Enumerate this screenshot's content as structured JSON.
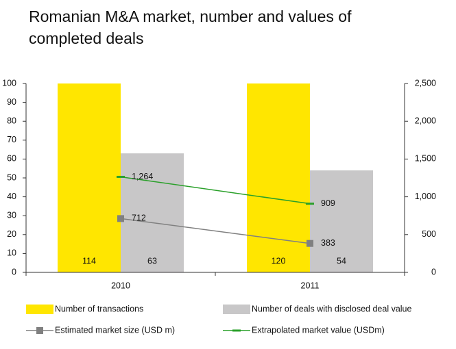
{
  "chart_data": {
    "type": "bar",
    "title": "Romanian M&A market, number and values of completed deals",
    "categories": [
      "2010",
      "2011"
    ],
    "series": [
      {
        "name": "Number of transactions",
        "type": "bar",
        "color": "#ffe600",
        "values": [
          114,
          120
        ]
      },
      {
        "name": "Number of deals with disclosed deal value",
        "type": "bar",
        "color": "#c8c7c8",
        "values": [
          63,
          54
        ]
      },
      {
        "name": "Estimated market size (USD m)",
        "type": "line",
        "axis": "y2",
        "color": "#808080",
        "values": [
          712,
          383
        ]
      },
      {
        "name": "Extrapolated market value (USDm)",
        "type": "line",
        "axis": "y2",
        "color": "#2aa02a",
        "values": [
          1264,
          909
        ],
        "value_labels": [
          "1,264",
          "909"
        ]
      }
    ],
    "ylim": [
      0,
      100
    ],
    "yticks": [
      0,
      10,
      20,
      30,
      40,
      50,
      60,
      70,
      80,
      90,
      100
    ],
    "y2lim": [
      0,
      2500
    ],
    "y2ticks": [
      0,
      500,
      {
        "value": 1000,
        "label": "1,000"
      },
      {
        "value": 1500,
        "label": "1,500"
      },
      {
        "value": 2000,
        "label": "2,000"
      },
      {
        "value": 2500,
        "label": "2,500"
      }
    ],
    "legend": "bottom"
  }
}
